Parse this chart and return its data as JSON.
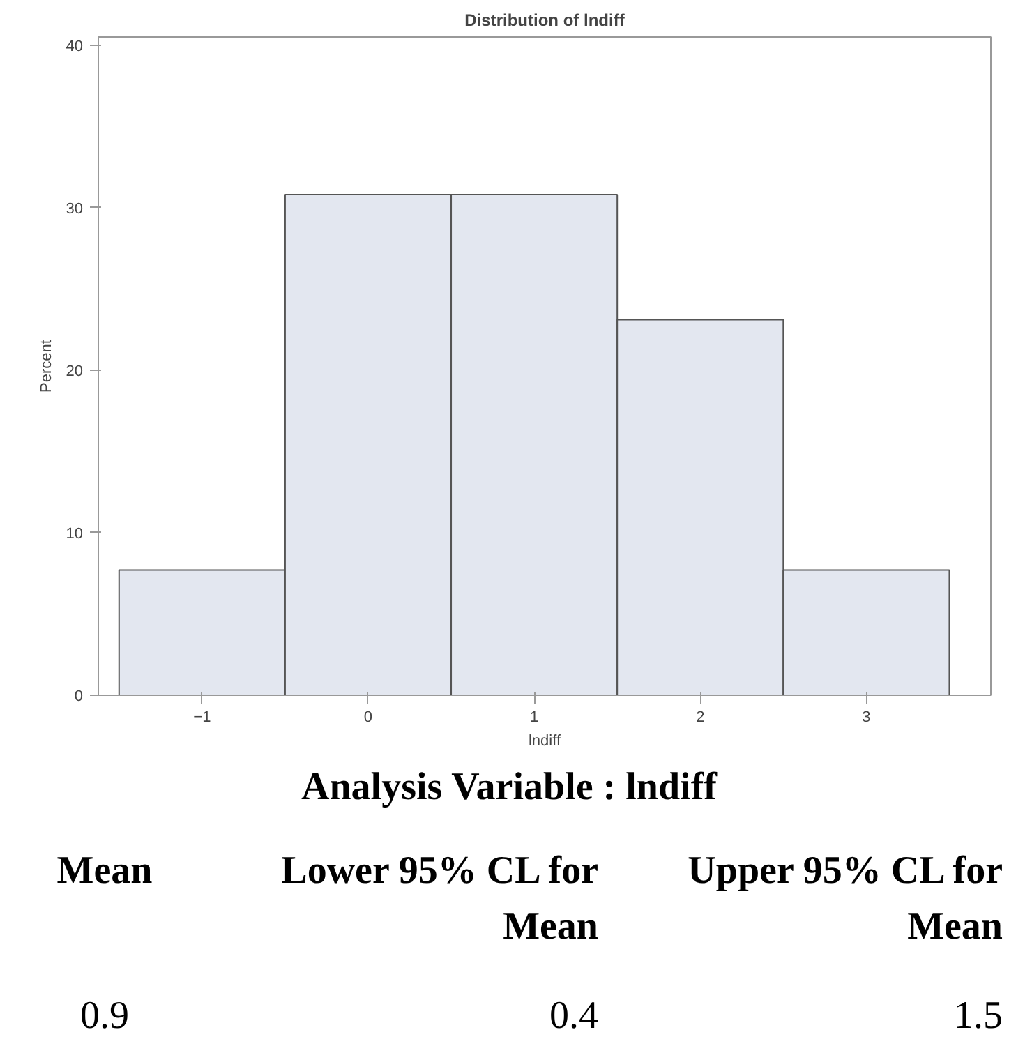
{
  "chart_data": {
    "type": "histogram",
    "title": "Distribution of lndiff",
    "xlabel": "lndiff",
    "ylabel": "Percent",
    "bins": [
      -1.5,
      -0.5,
      0.5,
      1.5,
      2.5,
      3.5
    ],
    "values": [
      7.7,
      30.8,
      30.8,
      23.1,
      7.7
    ],
    "color": "#e3e7f0",
    "xlim": [
      -1.625,
      3.75
    ],
    "xticks": [
      -1,
      0,
      1,
      2,
      3
    ],
    "ylim": [
      0,
      40.5
    ],
    "yticks": [
      0,
      10,
      20,
      30,
      40
    ],
    "grid": false,
    "annotations": [
      "Analysis Variable : lndiff",
      "Mean",
      "Lower 95% CL for Mean",
      "Upper 95% CL for Mean",
      "0.9",
      "0.4",
      "1.5"
    ]
  }
}
